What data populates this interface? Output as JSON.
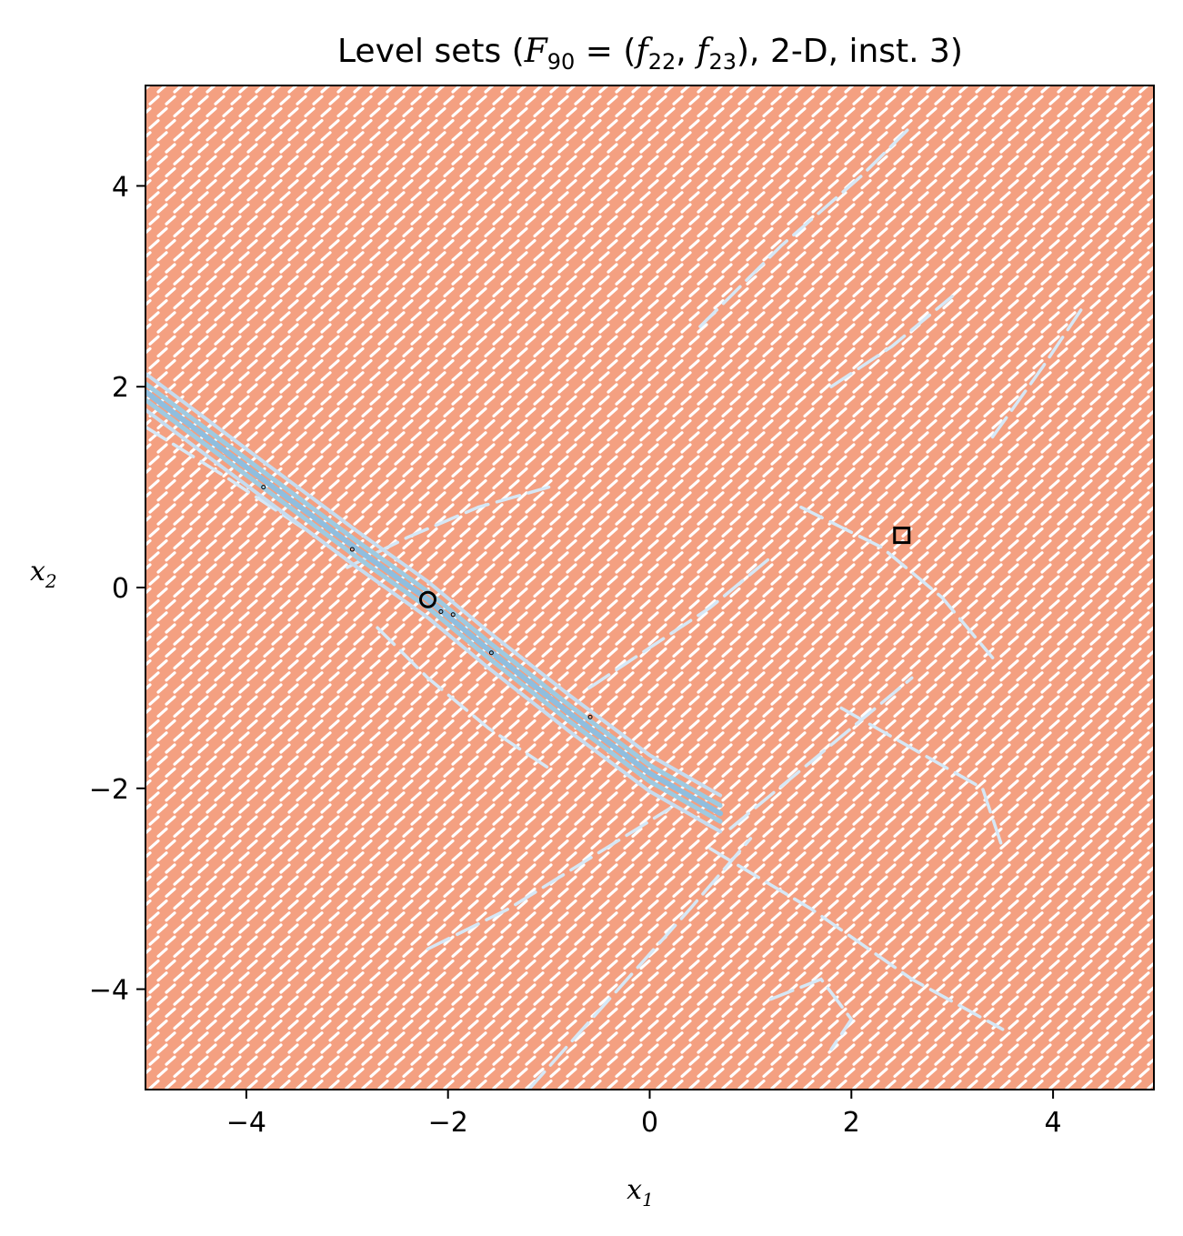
{
  "chart_data": {
    "type": "contour",
    "title": "Level sets (F_90 = (f_22, f_23), 2-D, inst. 3)",
    "title_parts": {
      "prefix": "Level sets (",
      "F": "F",
      "F_sub": "90",
      "eq": " = (",
      "f1": "f",
      "f1_sub": "22",
      "comma": ", ",
      "f2": "f",
      "f2_sub": "23",
      "suffix": "), 2-D, inst. 3)"
    },
    "xlabel": {
      "base": "x",
      "sub": "1"
    },
    "ylabel": {
      "base": "x",
      "sub": "2"
    },
    "xlim": [
      -5,
      5
    ],
    "ylim": [
      -5,
      5
    ],
    "xticks": [
      -4,
      -2,
      0,
      2,
      4
    ],
    "yticks": [
      -4,
      -2,
      0,
      2,
      4
    ],
    "xtick_labels": [
      "−4",
      "−2",
      "0",
      "2",
      "4"
    ],
    "ytick_labels": [
      "−4",
      "−2",
      "0",
      "2",
      "4"
    ],
    "grid": false,
    "series": [
      {
        "kind": "level-lines-f23",
        "color": "#f4a081",
        "style": "dense dashed arcs"
      },
      {
        "kind": "level-lines-f22",
        "color": "#9ecae1",
        "light_color": "#d6e8f6",
        "ridge": [
          [
            -5.0,
            1.95
          ],
          [
            -3.8,
            1.05
          ],
          [
            -2.9,
            0.38
          ],
          [
            -2.2,
            -0.12
          ],
          [
            -1.6,
            -0.62
          ],
          [
            -0.8,
            -1.25
          ],
          [
            0.0,
            -1.85
          ],
          [
            0.7,
            -2.25
          ]
        ],
        "other_paths": [
          [
            [
              0.5,
              2.6
            ],
            [
              1.3,
              3.4
            ],
            [
              2.1,
              4.1
            ],
            [
              2.6,
              4.6
            ]
          ],
          [
            [
              1.8,
              2.0
            ],
            [
              2.4,
              2.4
            ],
            [
              3.0,
              2.9
            ]
          ],
          [
            [
              3.4,
              1.5
            ],
            [
              3.9,
              2.2
            ],
            [
              4.3,
              2.8
            ]
          ],
          [
            [
              1.5,
              0.8
            ],
            [
              2.3,
              0.4
            ],
            [
              2.9,
              -0.1
            ],
            [
              3.4,
              -0.7
            ]
          ],
          [
            [
              -3.0,
              0.2
            ],
            [
              -2.4,
              0.5
            ],
            [
              -1.7,
              0.8
            ],
            [
              -1.0,
              1.0
            ]
          ],
          [
            [
              -2.7,
              -0.4
            ],
            [
              -2.2,
              -0.9
            ],
            [
              -1.6,
              -1.4
            ],
            [
              -1.0,
              -1.8
            ]
          ],
          [
            [
              -0.6,
              -1.0
            ],
            [
              0.0,
              -0.6
            ],
            [
              0.6,
              -0.2
            ],
            [
              1.2,
              0.3
            ]
          ],
          [
            [
              -2.2,
              -3.6
            ],
            [
              -1.4,
              -3.2
            ],
            [
              -0.6,
              -2.7
            ],
            [
              0.2,
              -2.2
            ]
          ],
          [
            [
              -1.2,
              -5.0
            ],
            [
              -0.4,
              -4.1
            ],
            [
              0.4,
              -3.2
            ],
            [
              1.0,
              -2.5
            ]
          ],
          [
            [
              0.8,
              -2.4
            ],
            [
              1.4,
              -1.9
            ],
            [
              2.0,
              -1.4
            ],
            [
              2.6,
              -0.9
            ]
          ],
          [
            [
              1.9,
              -1.2
            ],
            [
              2.6,
              -1.6
            ],
            [
              3.3,
              -2.0
            ],
            [
              3.5,
              -2.6
            ]
          ],
          [
            [
              0.6,
              -2.6
            ],
            [
              1.6,
              -3.2
            ],
            [
              2.6,
              -3.9
            ],
            [
              3.5,
              -4.4
            ]
          ],
          [
            [
              1.2,
              -4.1
            ],
            [
              1.7,
              -3.9
            ],
            [
              2.0,
              -4.3
            ],
            [
              1.8,
              -4.6
            ]
          ],
          [
            [
              -5.0,
              1.6
            ],
            [
              -4.2,
              1.1
            ],
            [
              -3.3,
              0.5
            ]
          ]
        ]
      }
    ],
    "markers": [
      {
        "label": "optimum-f22",
        "shape": "circle",
        "x": -2.2,
        "y": -0.12
      },
      {
        "label": "optimum-f23",
        "shape": "square",
        "x": 2.5,
        "y": 0.52
      },
      {
        "label": "local-minimum",
        "shape": "dot",
        "x": -3.83,
        "y": 1.0
      },
      {
        "label": "local-minimum",
        "shape": "dot",
        "x": -2.95,
        "y": 0.38
      },
      {
        "label": "local-minimum",
        "shape": "dot",
        "x": -2.07,
        "y": -0.24
      },
      {
        "label": "local-minimum",
        "shape": "dot",
        "x": -1.95,
        "y": -0.27
      },
      {
        "label": "local-minimum",
        "shape": "dot",
        "x": -1.57,
        "y": -0.65
      },
      {
        "label": "local-minimum",
        "shape": "dot",
        "x": -0.59,
        "y": -1.29
      }
    ]
  }
}
